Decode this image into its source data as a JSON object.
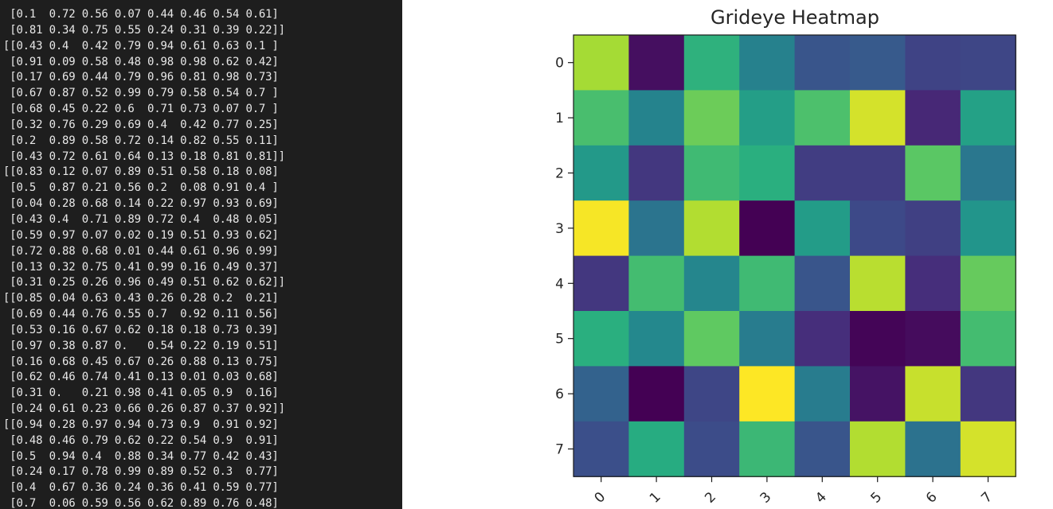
{
  "terminal": {
    "lines": [
      " [0.1  0.72 0.56 0.07 0.44 0.46 0.54 0.61]",
      " [0.81 0.34 0.75 0.55 0.24 0.31 0.39 0.22]]",
      "[[0.43 0.4  0.42 0.79 0.94 0.61 0.63 0.1 ]",
      " [0.91 0.09 0.58 0.48 0.98 0.98 0.62 0.42]",
      " [0.17 0.69 0.44 0.79 0.96 0.81 0.98 0.73]",
      " [0.67 0.87 0.52 0.99 0.79 0.58 0.54 0.7 ]",
      " [0.68 0.45 0.22 0.6  0.71 0.73 0.07 0.7 ]",
      " [0.32 0.76 0.29 0.69 0.4  0.42 0.77 0.25]",
      " [0.2  0.89 0.58 0.72 0.14 0.82 0.55 0.11]",
      " [0.43 0.72 0.61 0.64 0.13 0.18 0.81 0.81]]",
      "[[0.83 0.12 0.07 0.89 0.51 0.58 0.18 0.08]",
      " [0.5  0.87 0.21 0.56 0.2  0.08 0.91 0.4 ]",
      " [0.04 0.28 0.68 0.14 0.22 0.97 0.93 0.69]",
      " [0.43 0.4  0.71 0.89 0.72 0.4  0.48 0.05]",
      " [0.59 0.97 0.07 0.02 0.19 0.51 0.93 0.62]",
      " [0.72 0.88 0.68 0.01 0.44 0.61 0.96 0.99]",
      " [0.13 0.32 0.75 0.41 0.99 0.16 0.49 0.37]",
      " [0.31 0.25 0.26 0.96 0.49 0.51 0.62 0.62]]",
      "[[0.85 0.04 0.63 0.43 0.26 0.28 0.2  0.21]",
      " [0.69 0.44 0.76 0.55 0.7  0.92 0.11 0.56]",
      " [0.53 0.16 0.67 0.62 0.18 0.18 0.73 0.39]",
      " [0.97 0.38 0.87 0.   0.54 0.22 0.19 0.51]",
      " [0.16 0.68 0.45 0.67 0.26 0.88 0.13 0.75]",
      " [0.62 0.46 0.74 0.41 0.13 0.01 0.03 0.68]",
      " [0.31 0.   0.21 0.98 0.41 0.05 0.9  0.16]",
      " [0.24 0.61 0.23 0.66 0.26 0.87 0.37 0.92]]",
      "[[0.94 0.28 0.97 0.94 0.73 0.9  0.91 0.92]",
      " [0.48 0.46 0.79 0.62 0.22 0.54 0.9  0.91]",
      " [0.5  0.94 0.4  0.88 0.34 0.77 0.42 0.43]",
      " [0.24 0.17 0.78 0.99 0.89 0.52 0.3  0.77]",
      " [0.4  0.67 0.36 0.24 0.36 0.41 0.59 0.77]",
      " [0.7  0.06 0.59 0.56 0.62 0.89 0.76 0.48]"
    ],
    "text_color": "#e8e8e8",
    "background": "#1e1e1e"
  },
  "chart_data": {
    "type": "heatmap",
    "title": "Grideye Heatmap",
    "colormap": "viridis",
    "x_ticks": [
      "0",
      "1",
      "2",
      "3",
      "4",
      "5",
      "6",
      "7"
    ],
    "y_ticks": [
      "0",
      "1",
      "2",
      "3",
      "4",
      "5",
      "6",
      "7"
    ],
    "x_tick_rotation": -45,
    "grid": false,
    "values": [
      [
        0.85,
        0.04,
        0.63,
        0.43,
        0.26,
        0.28,
        0.2,
        0.21
      ],
      [
        0.69,
        0.44,
        0.76,
        0.55,
        0.7,
        0.92,
        0.11,
        0.56
      ],
      [
        0.53,
        0.16,
        0.67,
        0.62,
        0.18,
        0.18,
        0.73,
        0.39
      ],
      [
        0.97,
        0.38,
        0.87,
        0.0,
        0.54,
        0.22,
        0.19,
        0.51
      ],
      [
        0.16,
        0.68,
        0.45,
        0.67,
        0.26,
        0.88,
        0.13,
        0.75
      ],
      [
        0.62,
        0.46,
        0.74,
        0.41,
        0.13,
        0.01,
        0.03,
        0.68
      ],
      [
        0.31,
        0.0,
        0.21,
        0.98,
        0.41,
        0.05,
        0.9,
        0.16
      ],
      [
        0.24,
        0.61,
        0.23,
        0.66,
        0.26,
        0.87,
        0.37,
        0.92
      ]
    ]
  }
}
